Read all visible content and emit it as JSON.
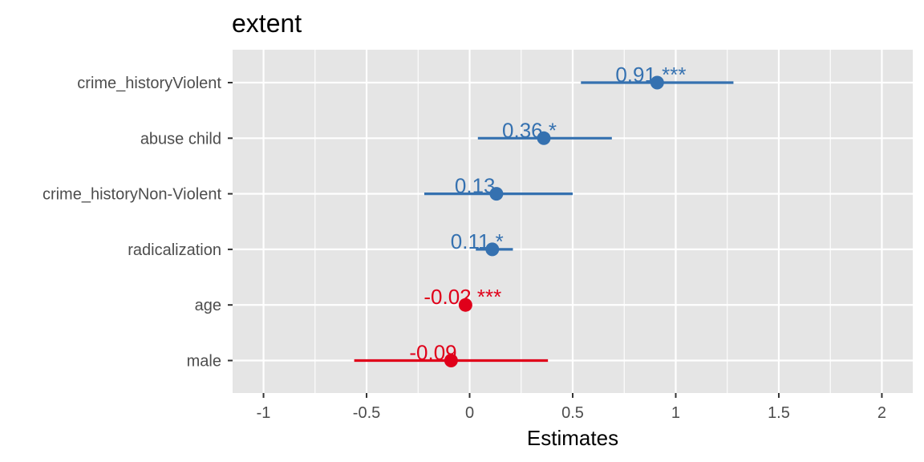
{
  "colors": {
    "positive": "#3571b0",
    "negative": "#e0001a",
    "panel": "#e5e5e5",
    "grid": "#ffffff"
  },
  "chart_data": {
    "type": "scatter",
    "title": "extent",
    "xlabel": "Estimates",
    "ylabel": "",
    "xlim": [
      -1.15,
      2.15
    ],
    "xticks": [
      -1,
      -0.5,
      0,
      0.5,
      1,
      1.5,
      2
    ],
    "xtick_labels": [
      "-1",
      "-0.5",
      "0",
      "0.5",
      "1",
      "1.5",
      "2"
    ],
    "grid": true,
    "legend": "none",
    "terms": [
      {
        "name": "crime_historyViolent",
        "estimate": 0.91,
        "ci_low": 0.54,
        "ci_high": 1.28,
        "label": "0.91 ***",
        "sign": "positive"
      },
      {
        "name": "abuse child",
        "estimate": 0.36,
        "ci_low": 0.04,
        "ci_high": 0.69,
        "label": "0.36 *",
        "sign": "positive"
      },
      {
        "name": "crime_historyNon-Violent",
        "estimate": 0.13,
        "ci_low": -0.22,
        "ci_high": 0.5,
        "label": "0.13",
        "sign": "positive"
      },
      {
        "name": "radicalization",
        "estimate": 0.11,
        "ci_low": 0.03,
        "ci_high": 0.21,
        "label": "0.11 *",
        "sign": "positive"
      },
      {
        "name": "age",
        "estimate": -0.02,
        "ci_low": -0.03,
        "ci_high": -0.01,
        "label": "-0.02 ***",
        "sign": "negative"
      },
      {
        "name": "male",
        "estimate": -0.09,
        "ci_low": -0.56,
        "ci_high": 0.38,
        "label": "-0.09",
        "sign": "negative"
      }
    ]
  }
}
